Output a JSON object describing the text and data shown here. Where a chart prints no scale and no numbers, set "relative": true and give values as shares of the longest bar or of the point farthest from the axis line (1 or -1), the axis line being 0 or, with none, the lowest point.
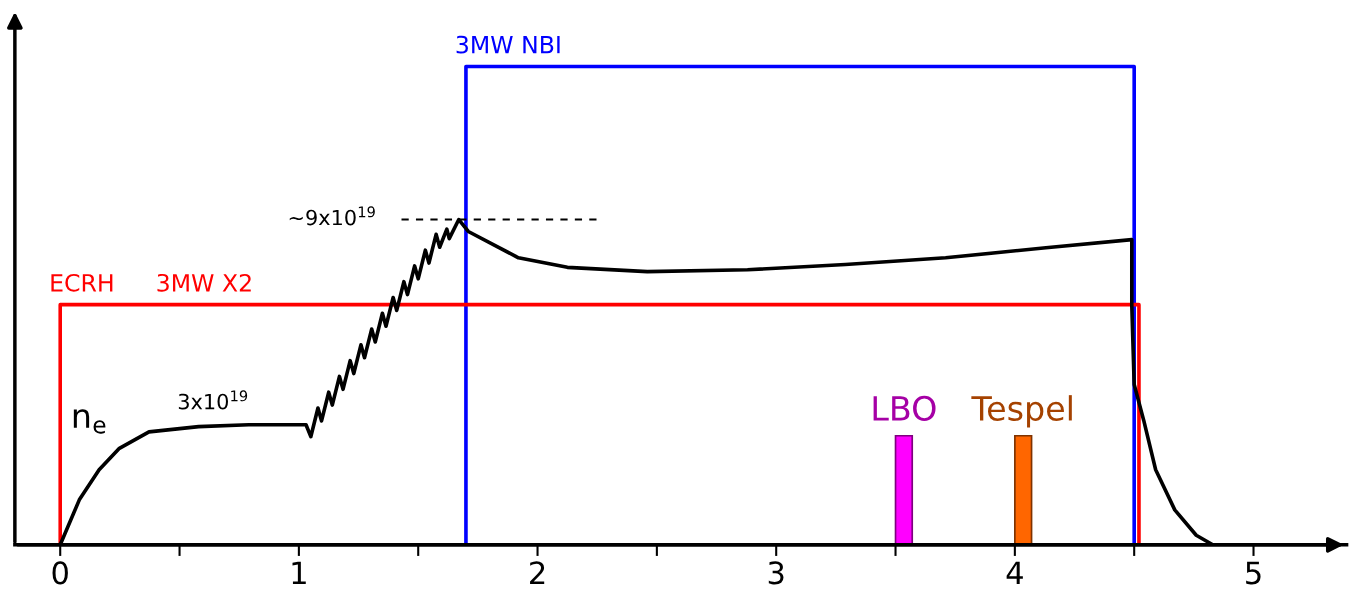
{
  "chart_data": {
    "type": "line",
    "relative": true,
    "xlim": [
      -0.19,
      5.39
    ],
    "xticks": [
      0,
      {
        "value": 0.5,
        "label": null
      },
      1,
      {
        "value": 1.5,
        "label": null
      },
      2,
      {
        "value": 2.5,
        "label": null
      },
      3,
      {
        "value": 3.5,
        "label": null
      },
      4,
      {
        "value": 4.5,
        "label": null
      },
      5
    ],
    "series": [
      {
        "name": "3MW NBI",
        "color": "#0000ff",
        "x": [
          1.7,
          1.7,
          4.5,
          4.5
        ],
        "values": [
          0,
          1,
          1,
          0
        ]
      },
      {
        "name": "ECRH",
        "color": "#ff0000",
        "x": [
          0,
          0,
          4.52,
          4.52
        ],
        "values": [
          0,
          0.502,
          0.502,
          0
        ]
      },
      {
        "name": "n$_{e}$",
        "color": "#000000",
        "x": [
          0,
          0.08,
          0.163,
          0.246,
          0.372,
          0.58,
          0.79,
          1.0,
          1.03,
          1.05,
          1.08,
          1.095,
          1.125,
          1.14,
          1.17,
          1.185,
          1.215,
          1.23,
          1.26,
          1.275,
          1.305,
          1.32,
          1.35,
          1.365,
          1.395,
          1.41,
          1.44,
          1.455,
          1.485,
          1.5,
          1.53,
          1.545,
          1.575,
          1.59,
          1.62,
          1.63,
          1.67,
          1.71,
          1.92,
          2.125,
          2.46,
          2.88,
          3.29,
          3.71,
          4.13,
          4.49,
          4.49,
          4.5,
          4.54,
          4.59,
          4.67,
          4.76,
          4.83
        ],
        "values": [
          0,
          0.094,
          0.157,
          0.201,
          0.236,
          0.247,
          0.251,
          0.251,
          0.251,
          0.226,
          0.286,
          0.259,
          0.319,
          0.292,
          0.352,
          0.325,
          0.385,
          0.358,
          0.418,
          0.391,
          0.451,
          0.424,
          0.484,
          0.457,
          0.517,
          0.49,
          0.55,
          0.523,
          0.583,
          0.556,
          0.616,
          0.589,
          0.649,
          0.622,
          0.66,
          0.64,
          0.68,
          0.655,
          0.6,
          0.58,
          0.571,
          0.575,
          0.586,
          0.6,
          0.621,
          0.638,
          0.5,
          0.335,
          0.26,
          0.157,
          0.073,
          0.02,
          0
        ]
      },
      {
        "color": "#000000",
        "line_style": "dashed",
        "x": [
          1.43,
          2.25
        ],
        "values": [
          0.68,
          0.68
        ]
      },
      {
        "name": "LBO",
        "color": "#ff00ff",
        "type": "bar",
        "x": [
          3.535
        ],
        "values": [
          0.228
        ]
      },
      {
        "name": "Tespel",
        "color": "#ff6600",
        "type": "bar",
        "x": [
          4.035
        ],
        "values": [
          0.228
        ]
      }
    ],
    "annotations": [
      {
        "text": "3MW X2",
        "x": 0.4,
        "y": 0.502
      },
      {
        "text": "3x10$^{19}$",
        "x": 0.79,
        "y": 0.251
      },
      {
        "text": "~9x10$^{19}$",
        "x": 1.43,
        "y": 0.68
      }
    ],
    "legend": false,
    "grid": false
  }
}
